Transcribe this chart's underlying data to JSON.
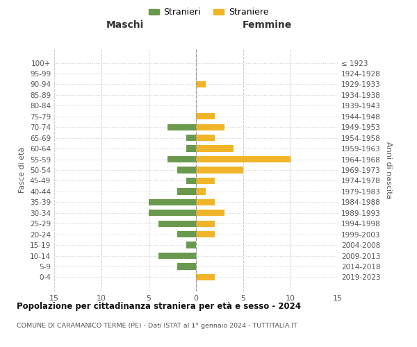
{
  "age_groups": [
    "100+",
    "95-99",
    "90-94",
    "85-89",
    "80-84",
    "75-79",
    "70-74",
    "65-69",
    "60-64",
    "55-59",
    "50-54",
    "45-49",
    "40-44",
    "35-39",
    "30-34",
    "25-29",
    "20-24",
    "15-19",
    "10-14",
    "5-9",
    "0-4"
  ],
  "birth_years": [
    "≤ 1923",
    "1924-1928",
    "1929-1933",
    "1934-1938",
    "1939-1943",
    "1944-1948",
    "1949-1953",
    "1954-1958",
    "1959-1963",
    "1964-1968",
    "1969-1973",
    "1974-1978",
    "1979-1983",
    "1984-1988",
    "1989-1993",
    "1994-1998",
    "1999-2003",
    "2004-2008",
    "2009-2013",
    "2014-2018",
    "2019-2023"
  ],
  "maschi": [
    0,
    0,
    0,
    0,
    0,
    0,
    3,
    1,
    1,
    3,
    2,
    1,
    2,
    5,
    5,
    4,
    2,
    1,
    4,
    2,
    0
  ],
  "femmine": [
    0,
    0,
    1,
    0,
    0,
    2,
    3,
    2,
    4,
    10,
    5,
    2,
    1,
    2,
    3,
    2,
    2,
    0,
    0,
    0,
    2
  ],
  "color_maschi": "#6a994e",
  "color_femmine": "#f0b429",
  "title": "Popolazione per cittadinanza straniera per età e sesso - 2024",
  "subtitle": "COMUNE DI CARAMANICO TERME (PE) - Dati ISTAT al 1° gennaio 2024 - TUTTITALIA.IT",
  "xlabel_left": "Maschi",
  "xlabel_right": "Femmine",
  "ylabel_left": "Fasce di età",
  "ylabel_right": "Anni di nascita",
  "legend_stranieri": "Stranieri",
  "legend_straniere": "Straniere",
  "xlim": 15,
  "background_color": "#ffffff",
  "grid_color": "#cccccc"
}
